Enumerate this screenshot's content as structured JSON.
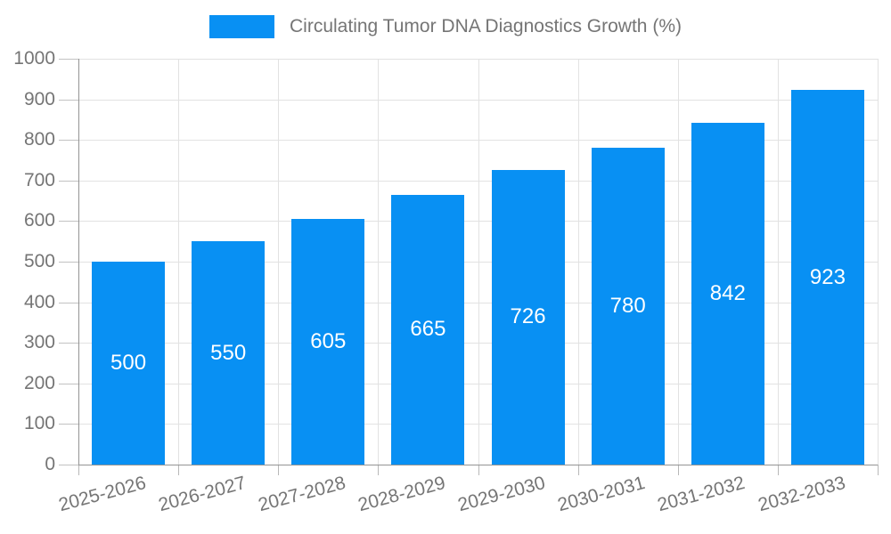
{
  "chart_data": {
    "type": "bar",
    "title": "Circulating Tumor DNA Diagnostics Growth (%)",
    "xlabel": "",
    "ylabel": "",
    "categories": [
      "2025-2026",
      "2026-2027",
      "2027-2028",
      "2028-2029",
      "2029-2030",
      "2030-2031",
      "2031-2032",
      "2032-2033"
    ],
    "values": [
      500,
      550,
      605,
      665,
      726,
      780,
      842,
      923
    ],
    "series_name": "Circulating Tumor DNA Diagnostics Growth (%)",
    "ylim": [
      0,
      1000
    ],
    "yticks": [
      0,
      100,
      200,
      300,
      400,
      500,
      600,
      700,
      800,
      900,
      1000
    ],
    "grid": true,
    "legend_position": "top",
    "x_label_rotation_deg": -15,
    "value_labels": "inside-center",
    "colors": {
      "bar": "#0890F3",
      "value_label": "#FFFFFF",
      "axis_text": "#757575",
      "grid_line": "#E2E2E2",
      "axis_line": "#949494"
    }
  }
}
